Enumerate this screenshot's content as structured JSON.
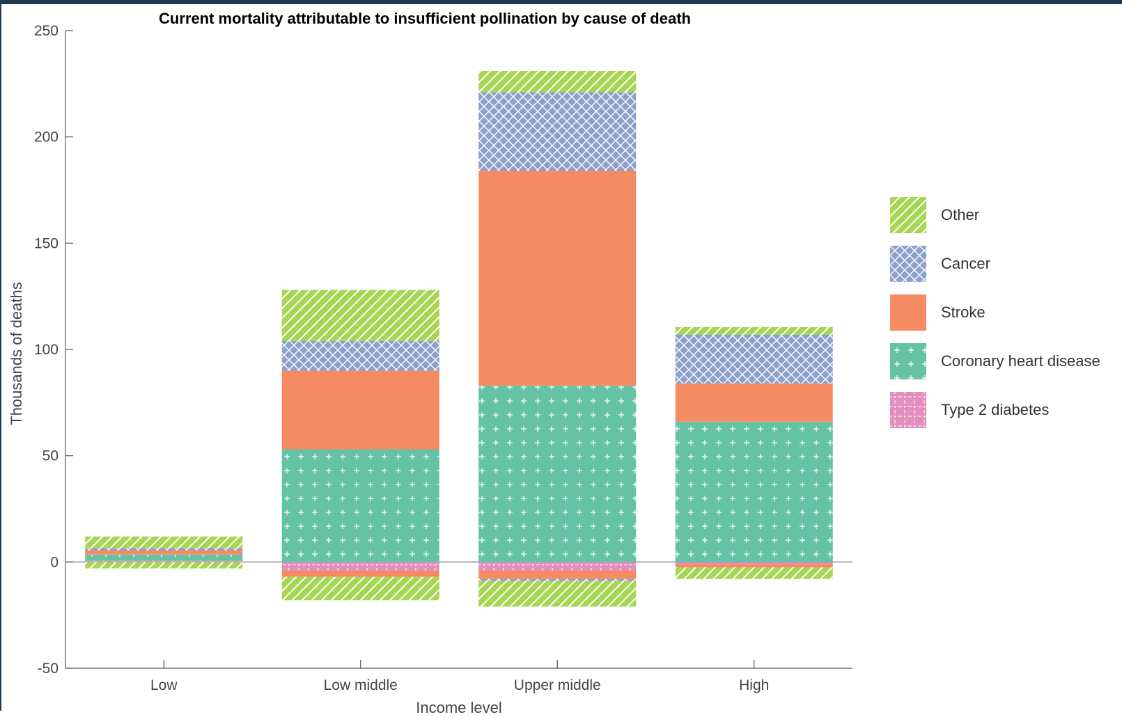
{
  "chart_data": {
    "type": "bar",
    "stacked": true,
    "title": "Current mortality attributable to insufficient pollination by cause of death",
    "xlabel": "Income level",
    "ylabel": "Thousands of deaths",
    "ylim": [
      -50,
      250
    ],
    "yticks": [
      "-50",
      "0",
      "50",
      "100",
      "150",
      "200",
      "250"
    ],
    "categories": [
      "Low",
      "Low middle",
      "Upper middle",
      "High"
    ],
    "grid": false,
    "legend_position": "right",
    "series": [
      {
        "name": "Type 2 diabetes",
        "color": "#e28fbf",
        "pattern": "grid",
        "positive": [
          0.5,
          0,
          0,
          0
        ],
        "negative": [
          0,
          -4,
          -4,
          -1
        ]
      },
      {
        "name": "Coronary heart disease",
        "color": "#66c2a5",
        "pattern": "plus",
        "positive": [
          3,
          53,
          83,
          66
        ],
        "negative": [
          0,
          0,
          0,
          0
        ]
      },
      {
        "name": "Stroke",
        "color": "#f58b63",
        "pattern": "solid",
        "positive": [
          2,
          37,
          101,
          18
        ],
        "negative": [
          0,
          -3,
          -4,
          -1.5
        ]
      },
      {
        "name": "Cancer",
        "color": "#8d9fcb",
        "pattern": "crosshatch",
        "positive": [
          1,
          14,
          37,
          23
        ],
        "negative": [
          0,
          0,
          -1,
          0
        ]
      },
      {
        "name": "Other",
        "color": "#a6d653",
        "pattern": "diagonal",
        "positive": [
          5.5,
          24,
          10,
          3.5
        ],
        "negative": [
          -3,
          -11,
          -12,
          -5.5
        ]
      }
    ]
  }
}
